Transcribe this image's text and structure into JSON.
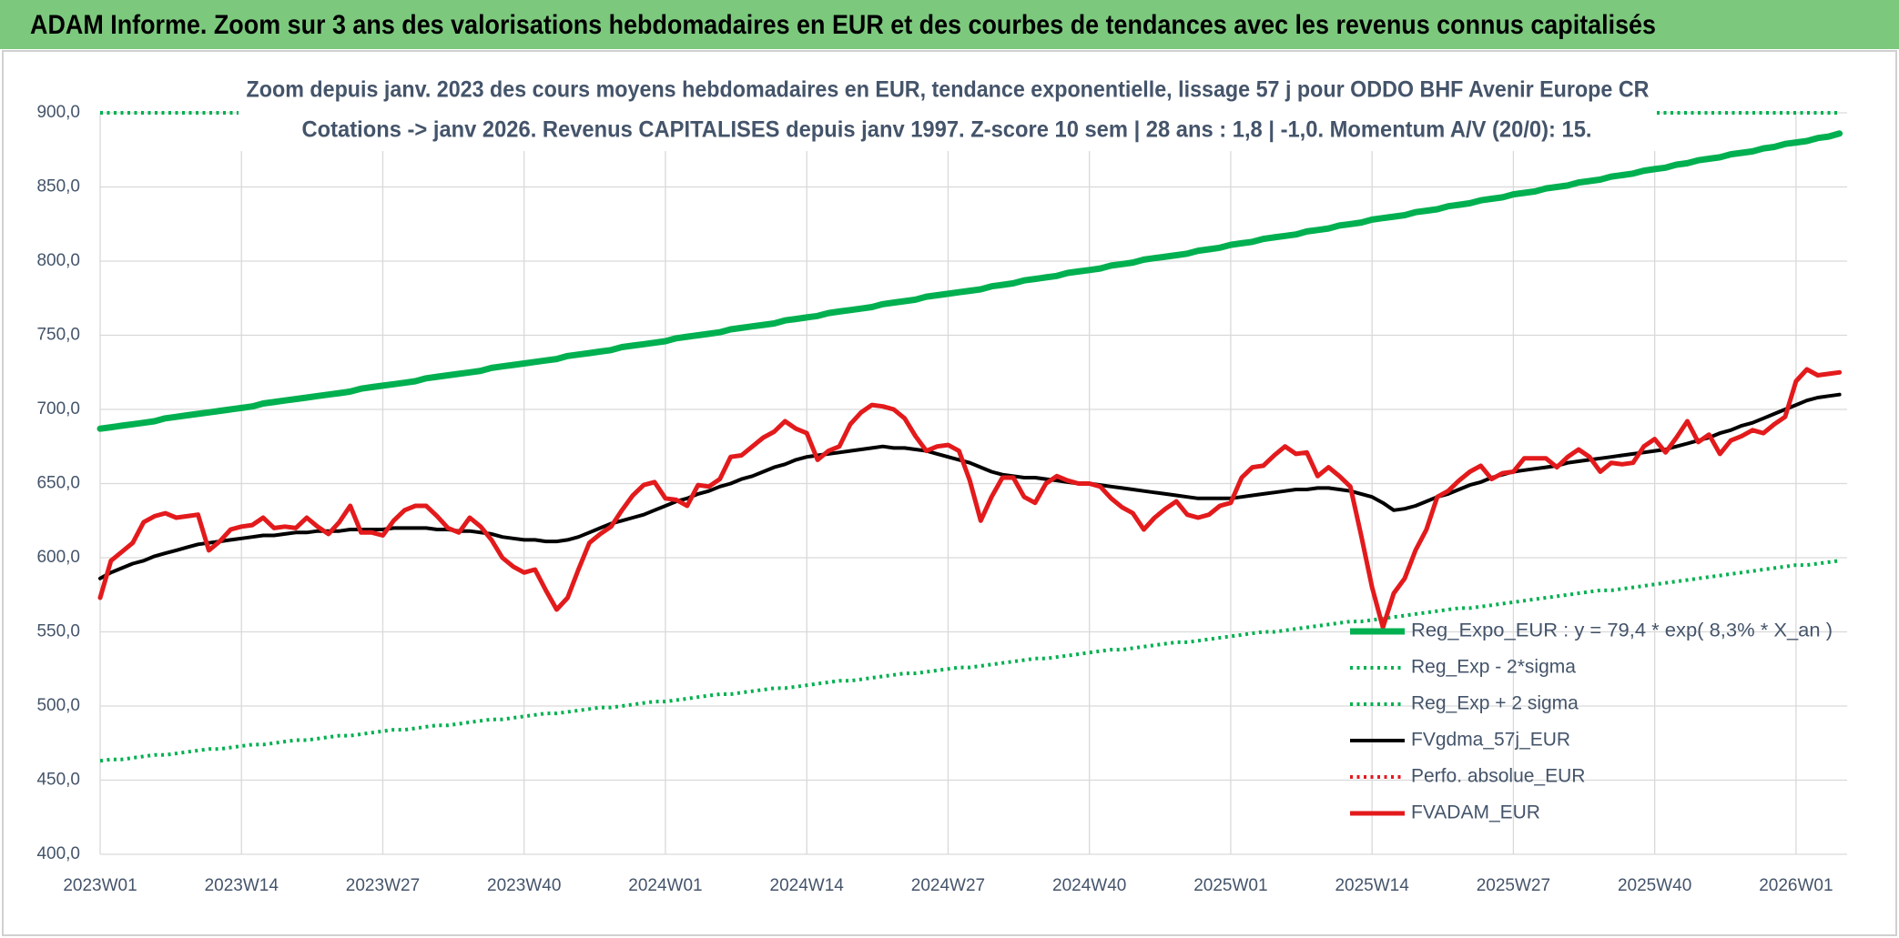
{
  "header": {
    "title": "ADAM Informe. Zoom sur 3 ans des valorisations hebdomadaires en EUR et des courbes de tendances avec les revenus connus capitalisés"
  },
  "chart_data": {
    "type": "line",
    "title": "Zoom depuis janv. 2023 des cours moyens hebdomadaires en EUR, tendance exponentielle, lissage 57 j pour ODDO BHF Avenir Europe CR",
    "subtitle": "Cotations -> janv 2026. Revenus CAPITALISES depuis janv 1997. Z-score 10 sem | 28 ans : 1,8 | -1,0. Momentum A/V (20/0): 15.",
    "categories": [
      "2023W01",
      null,
      null,
      null,
      null,
      null,
      null,
      null,
      null,
      null,
      null,
      null,
      null,
      "2023W14",
      null,
      null,
      null,
      null,
      null,
      null,
      null,
      null,
      null,
      null,
      null,
      null,
      "2023W27",
      null,
      null,
      null,
      null,
      null,
      null,
      null,
      null,
      null,
      null,
      null,
      null,
      "2023W40",
      null,
      null,
      null,
      null,
      null,
      null,
      null,
      null,
      null,
      null,
      null,
      null,
      "2024W01",
      null,
      null,
      null,
      null,
      null,
      null,
      null,
      null,
      null,
      null,
      null,
      null,
      "2024W14",
      null,
      null,
      null,
      null,
      null,
      null,
      null,
      null,
      null,
      null,
      null,
      null,
      "2024W27",
      null,
      null,
      null,
      null,
      null,
      null,
      null,
      null,
      null,
      null,
      null,
      null,
      "2024W40",
      null,
      null,
      null,
      null,
      null,
      null,
      null,
      null,
      null,
      null,
      null,
      null,
      "2025W01",
      null,
      null,
      null,
      null,
      null,
      null,
      null,
      null,
      null,
      null,
      null,
      null,
      "2025W14",
      null,
      null,
      null,
      null,
      null,
      null,
      null,
      null,
      null,
      null,
      null,
      null,
      "2025W27",
      null,
      null,
      null,
      null,
      null,
      null,
      null,
      null,
      null,
      null,
      null,
      null,
      "2025W40",
      null,
      null,
      null,
      null,
      null,
      null,
      null,
      null,
      null,
      null,
      null,
      null,
      "2026W01",
      null,
      null,
      null,
      null
    ],
    "series": [
      {
        "name": "Reg_Expo_EUR : y = 79,4 * exp( 8,3% *  X_an )",
        "color": "#00b050",
        "dash": false,
        "weight": "heavy",
        "values": [
          687,
          688,
          689,
          690,
          691,
          692,
          694,
          695,
          696,
          697,
          698,
          699,
          700,
          701,
          702,
          704,
          705,
          706,
          707,
          708,
          709,
          710,
          711,
          712,
          714,
          715,
          716,
          717,
          718,
          719,
          721,
          722,
          723,
          724,
          725,
          726,
          728,
          729,
          730,
          731,
          732,
          733,
          734,
          736,
          737,
          738,
          739,
          740,
          742,
          743,
          744,
          745,
          746,
          748,
          749,
          750,
          751,
          752,
          754,
          755,
          756,
          757,
          758,
          760,
          761,
          762,
          763,
          765,
          766,
          767,
          768,
          769,
          771,
          772,
          773,
          774,
          776,
          777,
          778,
          779,
          780,
          781,
          783,
          784,
          785,
          787,
          788,
          789,
          790,
          792,
          793,
          794,
          795,
          797,
          798,
          799,
          801,
          802,
          803,
          804,
          805,
          807,
          808,
          809,
          811,
          812,
          813,
          815,
          816,
          817,
          818,
          820,
          821,
          822,
          824,
          825,
          826,
          828,
          829,
          830,
          831,
          833,
          834,
          835,
          837,
          838,
          839,
          841,
          842,
          843,
          845,
          846,
          847,
          849,
          850,
          851,
          853,
          854,
          855,
          857,
          858,
          859,
          861,
          862,
          863,
          865,
          866,
          868,
          869,
          870,
          872,
          873,
          874,
          876,
          877,
          879,
          880,
          881,
          883,
          884,
          886
        ]
      },
      {
        "name": "Reg_Exp - 2*sigma",
        "color": "#00b050",
        "dash": true,
        "weight": "medium",
        "values": [
          463,
          464,
          464,
          465,
          466,
          467,
          467,
          468,
          469,
          470,
          471,
          471,
          472,
          473,
          474,
          474,
          475,
          476,
          477,
          477,
          478,
          479,
          480,
          480,
          481,
          482,
          483,
          484,
          484,
          485,
          486,
          487,
          487,
          488,
          489,
          490,
          491,
          491,
          492,
          493,
          494,
          495,
          495,
          496,
          497,
          498,
          499,
          499,
          500,
          501,
          502,
          503,
          503,
          504,
          505,
          506,
          507,
          508,
          508,
          509,
          510,
          511,
          512,
          512,
          513,
          514,
          515,
          516,
          517,
          517,
          518,
          519,
          520,
          521,
          522,
          522,
          523,
          524,
          525,
          526,
          526,
          527,
          528,
          529,
          530,
          531,
          532,
          532,
          533,
          534,
          535,
          536,
          537,
          538,
          538,
          539,
          540,
          541,
          542,
          543,
          543,
          544,
          545,
          546,
          547,
          548,
          549,
          550,
          550,
          551,
          552,
          553,
          554,
          555,
          556,
          557,
          557,
          558,
          559,
          560,
          561,
          562,
          563,
          564,
          565,
          566,
          566,
          567,
          568,
          569,
          570,
          571,
          572,
          573,
          574,
          575,
          576,
          577,
          578,
          578,
          579,
          580,
          581,
          582,
          583,
          584,
          585,
          586,
          587,
          588,
          589,
          590,
          591,
          592,
          593,
          594,
          595,
          595,
          596,
          597,
          598
        ]
      },
      {
        "name": "Reg_Exp + 2 sigma",
        "color": "#00b050",
        "dash": true,
        "weight": "medium",
        "values": [
          900,
          900,
          900,
          900,
          900,
          900,
          900,
          900,
          900,
          900,
          900,
          900,
          900,
          900,
          900,
          900,
          900,
          900,
          900,
          900,
          900,
          900,
          900,
          900,
          900,
          900,
          900,
          900,
          900,
          900,
          900,
          900,
          900,
          900,
          900,
          900,
          900,
          900,
          900,
          900,
          900,
          900,
          900,
          900,
          900,
          900,
          900,
          900,
          900,
          900,
          900,
          900,
          900,
          900,
          900,
          900,
          900,
          900,
          900,
          900,
          900,
          900,
          900,
          900,
          900,
          900,
          900,
          900,
          900,
          900,
          900,
          900,
          900,
          900,
          900,
          900,
          900,
          900,
          900,
          900,
          900,
          900,
          900,
          900,
          900,
          900,
          900,
          900,
          900,
          900,
          900,
          900,
          900,
          900,
          900,
          900,
          900,
          900,
          900,
          900,
          900,
          900,
          900,
          900,
          900,
          900,
          900,
          900,
          900,
          900,
          900,
          900,
          900,
          900,
          900,
          900,
          900,
          900,
          900,
          900,
          900,
          900,
          900,
          900,
          900,
          900,
          900,
          900,
          900,
          900,
          900,
          900,
          900,
          900,
          900,
          900,
          900,
          900,
          900,
          900,
          900,
          900,
          900,
          900,
          900,
          900,
          900,
          900,
          900,
          900,
          900,
          900,
          900,
          900,
          900,
          900,
          900,
          900,
          900,
          900,
          900
        ]
      },
      {
        "name": "FVgdma_57j_EUR",
        "color": "#000000",
        "dash": false,
        "weight": "light",
        "values": [
          586,
          590,
          593,
          596,
          598,
          601,
          603,
          605,
          607,
          609,
          610,
          611,
          612,
          613,
          614,
          615,
          615,
          616,
          617,
          617,
          618,
          618,
          618,
          619,
          619,
          619,
          619,
          620,
          620,
          620,
          620,
          619,
          619,
          618,
          618,
          617,
          616,
          614,
          613,
          612,
          612,
          611,
          611,
          612,
          614,
          617,
          620,
          623,
          625,
          627,
          629,
          632,
          635,
          638,
          640,
          643,
          645,
          648,
          650,
          653,
          655,
          658,
          661,
          663,
          666,
          668,
          669,
          670,
          671,
          672,
          673,
          674,
          675,
          674,
          674,
          673,
          672,
          670,
          668,
          666,
          664,
          661,
          658,
          656,
          655,
          654,
          654,
          653,
          652,
          651,
          650,
          650,
          649,
          648,
          647,
          646,
          645,
          644,
          643,
          642,
          641,
          640,
          640,
          640,
          640,
          641,
          642,
          643,
          644,
          645,
          646,
          646,
          647,
          647,
          646,
          645,
          643,
          641,
          637,
          632,
          633,
          635,
          638,
          641,
          643,
          646,
          649,
          651,
          654,
          656,
          658,
          659,
          660,
          661,
          662,
          664,
          665,
          666,
          667,
          668,
          669,
          670,
          671,
          672,
          673,
          675,
          677,
          679,
          681,
          684,
          686,
          689,
          691,
          694,
          697,
          700,
          703,
          706,
          708,
          709,
          710
        ]
      },
      {
        "name": "Perfo. absolue_EUR",
        "color": "#e31a1c",
        "dash": true,
        "weight": "light"
      },
      {
        "name": "FVADAM_EUR",
        "color": "#e31a1c",
        "dash": false,
        "weight": "medium",
        "values": [
          573,
          598,
          604,
          610,
          624,
          628,
          630,
          627,
          628,
          629,
          605,
          611,
          619,
          621,
          622,
          627,
          620,
          621,
          620,
          627,
          621,
          616,
          624,
          635,
          617,
          617,
          615,
          625,
          632,
          635,
          635,
          628,
          620,
          617,
          627,
          621,
          612,
          600,
          594,
          590,
          592,
          578,
          565,
          573,
          592,
          610,
          616,
          621,
          632,
          642,
          649,
          651,
          640,
          639,
          635,
          649,
          648,
          653,
          668,
          669,
          675,
          681,
          685,
          692,
          687,
          684,
          666,
          672,
          675,
          690,
          698,
          703,
          702,
          700,
          694,
          682,
          672,
          675,
          676,
          672,
          652,
          625,
          641,
          654,
          654,
          641,
          637,
          650,
          655,
          652,
          650,
          650,
          648,
          640,
          634,
          630,
          619,
          627,
          633,
          638,
          629,
          627,
          629,
          635,
          637,
          654,
          661,
          662,
          669,
          675,
          670,
          671,
          655,
          661,
          655,
          648,
          615,
          580,
          553,
          576,
          586,
          605,
          619,
          641,
          645,
          652,
          658,
          662,
          653,
          657,
          658,
          667,
          667,
          667,
          661,
          668,
          673,
          668,
          658,
          664,
          663,
          664,
          675,
          680,
          671,
          681,
          692,
          678,
          683,
          670,
          679,
          682,
          686,
          684,
          690,
          695,
          719,
          727,
          723,
          724,
          725
        ]
      }
    ],
    "ylim": [
      400,
      900
    ],
    "yticks": [
      {
        "value": 400,
        "label": "400,0"
      },
      {
        "value": 450,
        "label": "450,0"
      },
      {
        "value": 500,
        "label": "500,0"
      },
      {
        "value": 550,
        "label": "550,0"
      },
      {
        "value": 600,
        "label": "600,0"
      },
      {
        "value": 650,
        "label": "650,0"
      },
      {
        "value": 700,
        "label": "700,0"
      },
      {
        "value": 750,
        "label": "750,0"
      },
      {
        "value": 800,
        "label": "800,0"
      },
      {
        "value": 850,
        "label": "850,0"
      },
      {
        "value": 900,
        "label": "900,0"
      }
    ],
    "grid": true,
    "legend": "right"
  }
}
